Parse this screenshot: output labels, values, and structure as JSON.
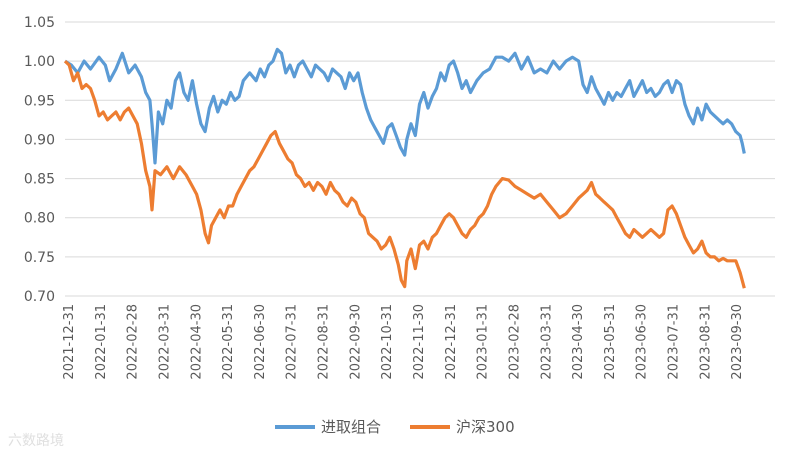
{
  "chart_data": {
    "type": "line",
    "title": "",
    "xlabel": "",
    "ylabel": "",
    "ylim": [
      0.7,
      1.05
    ],
    "yticks": [
      "0.70",
      "0.75",
      "0.80",
      "0.85",
      "0.90",
      "0.95",
      "1.00",
      "1.05"
    ],
    "xticks": [
      "2021-12-31",
      "2022-01-31",
      "2022-02-28",
      "2022-03-31",
      "2022-04-30",
      "2022-05-31",
      "2022-06-30",
      "2022-07-31",
      "2022-08-31",
      "2022-09-30",
      "2022-10-31",
      "2022-11-30",
      "2022-12-31",
      "2023-01-31",
      "2023-02-28",
      "2023-03-31",
      "2023-04-30",
      "2023-05-31",
      "2023-06-30",
      "2023-07-31",
      "2023-08-31",
      "2023-09-30"
    ],
    "grid": "horizontal",
    "legend_position": "bottom",
    "series": [
      {
        "name": "进取组合",
        "color": "#5B9BD5",
        "points": [
          [
            0.0,
            1.0
          ],
          [
            0.15,
            0.995
          ],
          [
            0.3,
            0.985
          ],
          [
            0.45,
            1.0
          ],
          [
            0.6,
            0.99
          ],
          [
            0.8,
            1.005
          ],
          [
            0.95,
            0.995
          ],
          [
            1.05,
            0.975
          ],
          [
            1.2,
            0.99
          ],
          [
            1.35,
            1.01
          ],
          [
            1.5,
            0.985
          ],
          [
            1.65,
            0.995
          ],
          [
            1.8,
            0.98
          ],
          [
            1.9,
            0.96
          ],
          [
            2.0,
            0.95
          ],
          [
            2.05,
            0.92
          ],
          [
            2.12,
            0.87
          ],
          [
            2.2,
            0.935
          ],
          [
            2.3,
            0.92
          ],
          [
            2.4,
            0.95
          ],
          [
            2.5,
            0.94
          ],
          [
            2.6,
            0.975
          ],
          [
            2.7,
            0.985
          ],
          [
            2.8,
            0.96
          ],
          [
            2.9,
            0.95
          ],
          [
            3.0,
            0.975
          ],
          [
            3.1,
            0.945
          ],
          [
            3.2,
            0.92
          ],
          [
            3.3,
            0.91
          ],
          [
            3.4,
            0.94
          ],
          [
            3.5,
            0.955
          ],
          [
            3.6,
            0.935
          ],
          [
            3.7,
            0.95
          ],
          [
            3.8,
            0.945
          ],
          [
            3.9,
            0.96
          ],
          [
            4.0,
            0.95
          ],
          [
            4.1,
            0.955
          ],
          [
            4.2,
            0.975
          ],
          [
            4.35,
            0.985
          ],
          [
            4.5,
            0.975
          ],
          [
            4.6,
            0.99
          ],
          [
            4.7,
            0.98
          ],
          [
            4.8,
            0.995
          ],
          [
            4.9,
            1.0
          ],
          [
            5.0,
            1.015
          ],
          [
            5.1,
            1.01
          ],
          [
            5.2,
            0.985
          ],
          [
            5.3,
            0.995
          ],
          [
            5.4,
            0.98
          ],
          [
            5.5,
            0.995
          ],
          [
            5.6,
            1.0
          ],
          [
            5.7,
            0.99
          ],
          [
            5.8,
            0.98
          ],
          [
            5.9,
            0.995
          ],
          [
            6.0,
            0.99
          ],
          [
            6.1,
            0.985
          ],
          [
            6.2,
            0.975
          ],
          [
            6.3,
            0.99
          ],
          [
            6.4,
            0.985
          ],
          [
            6.5,
            0.98
          ],
          [
            6.6,
            0.965
          ],
          [
            6.7,
            0.985
          ],
          [
            6.8,
            0.975
          ],
          [
            6.9,
            0.985
          ],
          [
            7.0,
            0.96
          ],
          [
            7.1,
            0.94
          ],
          [
            7.2,
            0.925
          ],
          [
            7.3,
            0.915
          ],
          [
            7.4,
            0.905
          ],
          [
            7.5,
            0.895
          ],
          [
            7.6,
            0.915
          ],
          [
            7.7,
            0.92
          ],
          [
            7.8,
            0.905
          ],
          [
            7.9,
            0.89
          ],
          [
            8.0,
            0.88
          ],
          [
            8.05,
            0.9
          ],
          [
            8.15,
            0.92
          ],
          [
            8.25,
            0.905
          ],
          [
            8.35,
            0.945
          ],
          [
            8.45,
            0.96
          ],
          [
            8.55,
            0.94
          ],
          [
            8.65,
            0.955
          ],
          [
            8.75,
            0.965
          ],
          [
            8.85,
            0.985
          ],
          [
            8.95,
            0.975
          ],
          [
            9.05,
            0.995
          ],
          [
            9.15,
            1.0
          ],
          [
            9.25,
            0.985
          ],
          [
            9.35,
            0.965
          ],
          [
            9.45,
            0.975
          ],
          [
            9.55,
            0.96
          ],
          [
            9.7,
            0.975
          ],
          [
            9.85,
            0.985
          ],
          [
            10.0,
            0.99
          ],
          [
            10.15,
            1.005
          ],
          [
            10.3,
            1.005
          ],
          [
            10.45,
            1.0
          ],
          [
            10.6,
            1.01
          ],
          [
            10.75,
            0.99
          ],
          [
            10.9,
            1.005
          ],
          [
            11.05,
            0.985
          ],
          [
            11.2,
            0.99
          ],
          [
            11.35,
            0.985
          ],
          [
            11.5,
            1.0
          ],
          [
            11.65,
            0.99
          ],
          [
            11.8,
            1.0
          ],
          [
            11.95,
            1.005
          ],
          [
            12.1,
            1.0
          ],
          [
            12.2,
            0.97
          ],
          [
            12.3,
            0.96
          ],
          [
            12.4,
            0.98
          ],
          [
            12.5,
            0.965
          ],
          [
            12.6,
            0.955
          ],
          [
            12.7,
            0.945
          ],
          [
            12.8,
            0.96
          ],
          [
            12.9,
            0.95
          ],
          [
            13.0,
            0.96
          ],
          [
            13.1,
            0.955
          ],
          [
            13.2,
            0.965
          ],
          [
            13.3,
            0.975
          ],
          [
            13.4,
            0.955
          ],
          [
            13.5,
            0.965
          ],
          [
            13.6,
            0.975
          ],
          [
            13.7,
            0.96
          ],
          [
            13.8,
            0.965
          ],
          [
            13.9,
            0.955
          ],
          [
            14.0,
            0.96
          ],
          [
            14.1,
            0.97
          ],
          [
            14.2,
            0.975
          ],
          [
            14.3,
            0.96
          ],
          [
            14.4,
            0.975
          ],
          [
            14.5,
            0.97
          ],
          [
            14.6,
            0.945
          ],
          [
            14.7,
            0.93
          ],
          [
            14.8,
            0.92
          ],
          [
            14.9,
            0.94
          ],
          [
            15.0,
            0.925
          ],
          [
            15.1,
            0.945
          ],
          [
            15.2,
            0.935
          ],
          [
            15.3,
            0.93
          ],
          [
            15.4,
            0.925
          ],
          [
            15.5,
            0.92
          ],
          [
            15.6,
            0.925
          ],
          [
            15.7,
            0.92
          ],
          [
            15.8,
            0.91
          ],
          [
            15.9,
            0.905
          ],
          [
            15.95,
            0.895
          ],
          [
            16.0,
            0.882
          ]
        ]
      },
      {
        "name": "沪深300",
        "color": "#ED7D31",
        "points": [
          [
            0.0,
            1.0
          ],
          [
            0.1,
            0.995
          ],
          [
            0.2,
            0.975
          ],
          [
            0.3,
            0.985
          ],
          [
            0.4,
            0.965
          ],
          [
            0.5,
            0.97
          ],
          [
            0.6,
            0.965
          ],
          [
            0.7,
            0.95
          ],
          [
            0.8,
            0.93
          ],
          [
            0.9,
            0.935
          ],
          [
            1.0,
            0.925
          ],
          [
            1.1,
            0.93
          ],
          [
            1.2,
            0.935
          ],
          [
            1.3,
            0.925
          ],
          [
            1.4,
            0.935
          ],
          [
            1.5,
            0.94
          ],
          [
            1.6,
            0.93
          ],
          [
            1.7,
            0.92
          ],
          [
            1.8,
            0.895
          ],
          [
            1.9,
            0.86
          ],
          [
            2.0,
            0.84
          ],
          [
            2.05,
            0.81
          ],
          [
            2.12,
            0.86
          ],
          [
            2.25,
            0.855
          ],
          [
            2.4,
            0.865
          ],
          [
            2.55,
            0.85
          ],
          [
            2.7,
            0.865
          ],
          [
            2.85,
            0.855
          ],
          [
            3.0,
            0.84
          ],
          [
            3.1,
            0.83
          ],
          [
            3.2,
            0.81
          ],
          [
            3.3,
            0.78
          ],
          [
            3.38,
            0.768
          ],
          [
            3.45,
            0.79
          ],
          [
            3.55,
            0.8
          ],
          [
            3.65,
            0.81
          ],
          [
            3.75,
            0.8
          ],
          [
            3.85,
            0.815
          ],
          [
            3.95,
            0.815
          ],
          [
            4.05,
            0.83
          ],
          [
            4.15,
            0.84
          ],
          [
            4.25,
            0.85
          ],
          [
            4.35,
            0.86
          ],
          [
            4.45,
            0.865
          ],
          [
            4.55,
            0.875
          ],
          [
            4.65,
            0.885
          ],
          [
            4.75,
            0.895
          ],
          [
            4.85,
            0.905
          ],
          [
            4.95,
            0.91
          ],
          [
            5.05,
            0.895
          ],
          [
            5.15,
            0.885
          ],
          [
            5.25,
            0.875
          ],
          [
            5.35,
            0.87
          ],
          [
            5.45,
            0.855
          ],
          [
            5.55,
            0.85
          ],
          [
            5.65,
            0.84
          ],
          [
            5.75,
            0.845
          ],
          [
            5.85,
            0.835
          ],
          [
            5.95,
            0.845
          ],
          [
            6.05,
            0.84
          ],
          [
            6.15,
            0.83
          ],
          [
            6.25,
            0.845
          ],
          [
            6.35,
            0.835
          ],
          [
            6.45,
            0.83
          ],
          [
            6.55,
            0.82
          ],
          [
            6.65,
            0.815
          ],
          [
            6.75,
            0.825
          ],
          [
            6.85,
            0.82
          ],
          [
            6.95,
            0.805
          ],
          [
            7.05,
            0.8
          ],
          [
            7.15,
            0.78
          ],
          [
            7.25,
            0.775
          ],
          [
            7.35,
            0.77
          ],
          [
            7.45,
            0.76
          ],
          [
            7.55,
            0.765
          ],
          [
            7.65,
            0.775
          ],
          [
            7.75,
            0.76
          ],
          [
            7.85,
            0.74
          ],
          [
            7.92,
            0.72
          ],
          [
            8.0,
            0.712
          ],
          [
            8.05,
            0.745
          ],
          [
            8.15,
            0.76
          ],
          [
            8.25,
            0.735
          ],
          [
            8.35,
            0.765
          ],
          [
            8.45,
            0.77
          ],
          [
            8.55,
            0.76
          ],
          [
            8.65,
            0.775
          ],
          [
            8.75,
            0.78
          ],
          [
            8.85,
            0.79
          ],
          [
            8.95,
            0.8
          ],
          [
            9.05,
            0.805
          ],
          [
            9.15,
            0.8
          ],
          [
            9.25,
            0.79
          ],
          [
            9.35,
            0.78
          ],
          [
            9.45,
            0.775
          ],
          [
            9.55,
            0.785
          ],
          [
            9.65,
            0.79
          ],
          [
            9.75,
            0.8
          ],
          [
            9.85,
            0.805
          ],
          [
            9.95,
            0.815
          ],
          [
            10.05,
            0.83
          ],
          [
            10.15,
            0.84
          ],
          [
            10.3,
            0.85
          ],
          [
            10.45,
            0.848
          ],
          [
            10.6,
            0.84
          ],
          [
            10.75,
            0.835
          ],
          [
            10.9,
            0.83
          ],
          [
            11.05,
            0.825
          ],
          [
            11.2,
            0.83
          ],
          [
            11.35,
            0.82
          ],
          [
            11.5,
            0.81
          ],
          [
            11.65,
            0.8
          ],
          [
            11.8,
            0.805
          ],
          [
            11.95,
            0.815
          ],
          [
            12.1,
            0.825
          ],
          [
            12.2,
            0.83
          ],
          [
            12.3,
            0.835
          ],
          [
            12.4,
            0.845
          ],
          [
            12.5,
            0.83
          ],
          [
            12.6,
            0.825
          ],
          [
            12.7,
            0.82
          ],
          [
            12.8,
            0.815
          ],
          [
            12.9,
            0.81
          ],
          [
            13.0,
            0.8
          ],
          [
            13.1,
            0.79
          ],
          [
            13.2,
            0.78
          ],
          [
            13.3,
            0.775
          ],
          [
            13.4,
            0.785
          ],
          [
            13.5,
            0.78
          ],
          [
            13.6,
            0.775
          ],
          [
            13.7,
            0.78
          ],
          [
            13.8,
            0.785
          ],
          [
            13.9,
            0.78
          ],
          [
            14.0,
            0.775
          ],
          [
            14.1,
            0.78
          ],
          [
            14.2,
            0.81
          ],
          [
            14.3,
            0.815
          ],
          [
            14.4,
            0.805
          ],
          [
            14.5,
            0.79
          ],
          [
            14.6,
            0.775
          ],
          [
            14.7,
            0.765
          ],
          [
            14.8,
            0.755
          ],
          [
            14.9,
            0.76
          ],
          [
            15.0,
            0.77
          ],
          [
            15.1,
            0.755
          ],
          [
            15.2,
            0.75
          ],
          [
            15.3,
            0.75
          ],
          [
            15.4,
            0.745
          ],
          [
            15.5,
            0.748
          ],
          [
            15.6,
            0.745
          ],
          [
            15.7,
            0.745
          ],
          [
            15.8,
            0.745
          ],
          [
            15.9,
            0.73
          ],
          [
            15.95,
            0.72
          ],
          [
            16.0,
            0.71
          ]
        ]
      }
    ]
  },
  "watermark": "六数路境"
}
